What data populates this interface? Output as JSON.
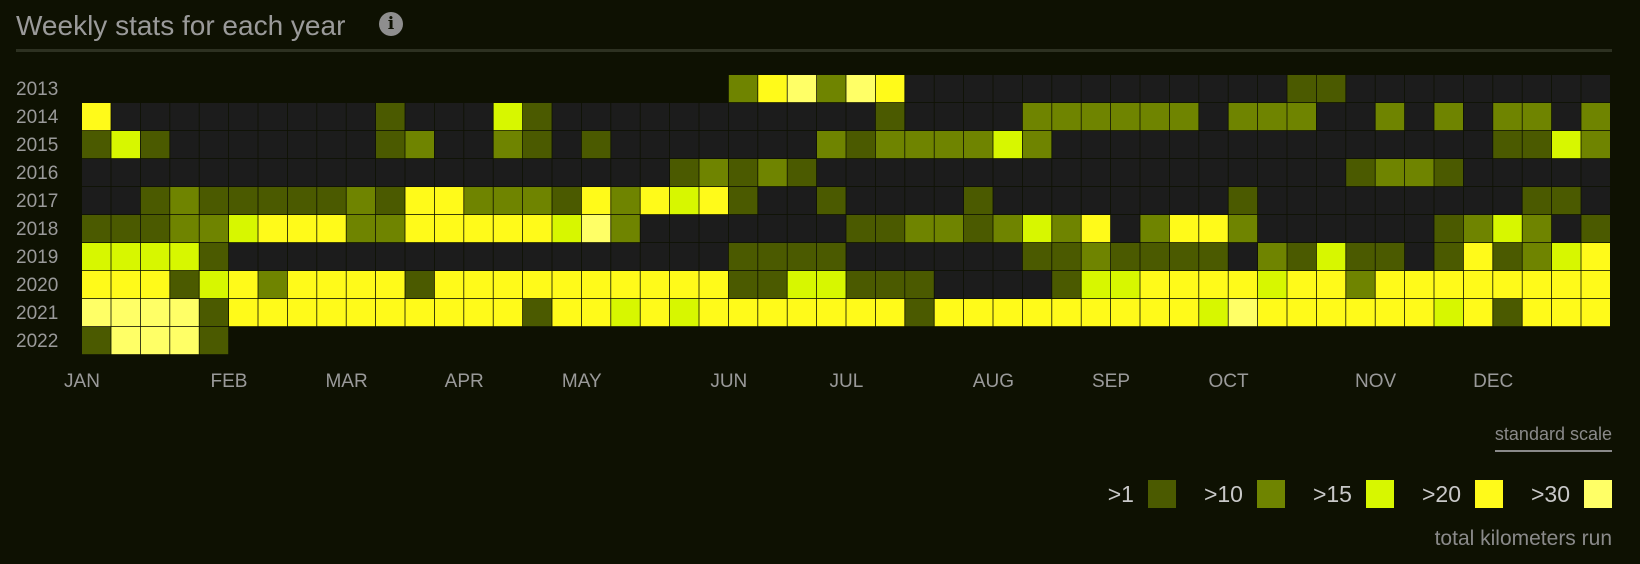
{
  "header": {
    "title": "Weekly stats for each year",
    "info_icon": "info-circle-icon"
  },
  "controls": {
    "scale_link": "standard scale"
  },
  "legend": {
    "caption": "total kilometers run",
    "items": [
      {
        "label": ">1",
        "color": "#4b5a00"
      },
      {
        "label": ">10",
        "color": "#6f8400"
      },
      {
        "label": ">15",
        "color": "#d7f700"
      },
      {
        "label": ">20",
        "color": "#fffa1a"
      },
      {
        "label": ">30",
        "color": "#ffff66"
      }
    ]
  },
  "chart_data": {
    "type": "heatmap",
    "title": "Weekly stats for each year",
    "y_labels": [
      "2013",
      "2014",
      "2015",
      "2016",
      "2017",
      "2018",
      "2019",
      "2020",
      "2021",
      "2022"
    ],
    "x_labels": [
      "JAN",
      "FEB",
      "MAR",
      "APR",
      "MAY",
      "JUN",
      "JUL",
      "AUG",
      "SEP",
      "OCT",
      "NOV",
      "DEC"
    ],
    "x_label_weeks": [
      0,
      5,
      9,
      13,
      17,
      22,
      26,
      31,
      35,
      39,
      44,
      48
    ],
    "weeks": 52,
    "unit": "total kilometers run",
    "levels": [
      ">1",
      ">10",
      ">15",
      ">20",
      ">30"
    ],
    "level_colors": [
      "#1c1c1c",
      "#4b5a00",
      "#6f8400",
      "#d7f700",
      "#fffa1a",
      "#ffff66"
    ],
    "values": [
      [
        -1,
        -1,
        -1,
        -1,
        -1,
        -1,
        -1,
        -1,
        -1,
        -1,
        -1,
        -1,
        -1,
        -1,
        -1,
        -1,
        -1,
        -1,
        -1,
        -1,
        -1,
        -1,
        2,
        4,
        5,
        2,
        5,
        4,
        0,
        0,
        0,
        0,
        0,
        0,
        0,
        0,
        0,
        0,
        0,
        0,
        0,
        1,
        1,
        0,
        0,
        0,
        0,
        0,
        0,
        0,
        0,
        0
      ],
      [
        4,
        0,
        0,
        0,
        0,
        0,
        0,
        0,
        0,
        0,
        1,
        0,
        0,
        0,
        3,
        1,
        0,
        0,
        0,
        0,
        0,
        0,
        0,
        0,
        0,
        0,
        0,
        1,
        0,
        0,
        0,
        0,
        2,
        2,
        2,
        2,
        2,
        2,
        0,
        2,
        2,
        2,
        0,
        0,
        2,
        0,
        2,
        0,
        2,
        2,
        0,
        2
      ],
      [
        1,
        3,
        1,
        0,
        0,
        0,
        0,
        0,
        0,
        0,
        1,
        2,
        0,
        0,
        2,
        1,
        0,
        1,
        0,
        0,
        0,
        0,
        0,
        0,
        0,
        2,
        1,
        2,
        2,
        2,
        2,
        3,
        2,
        0,
        0,
        0,
        0,
        0,
        0,
        0,
        0,
        0,
        0,
        0,
        0,
        0,
        0,
        0,
        1,
        1,
        3,
        2
      ],
      [
        0,
        0,
        0,
        0,
        0,
        0,
        0,
        0,
        0,
        0,
        0,
        0,
        0,
        0,
        0,
        0,
        0,
        0,
        0,
        0,
        1,
        2,
        1,
        2,
        1,
        0,
        0,
        0,
        0,
        0,
        0,
        0,
        0,
        0,
        0,
        0,
        0,
        0,
        0,
        0,
        0,
        0,
        0,
        1,
        2,
        2,
        1,
        0,
        0,
        0,
        0,
        0
      ],
      [
        0,
        0,
        1,
        2,
        1,
        1,
        1,
        1,
        1,
        2,
        1,
        4,
        4,
        2,
        2,
        2,
        1,
        4,
        2,
        4,
        3,
        4,
        1,
        0,
        0,
        1,
        0,
        0,
        0,
        0,
        1,
        0,
        0,
        0,
        0,
        0,
        0,
        0,
        0,
        1,
        0,
        0,
        0,
        0,
        0,
        0,
        0,
        0,
        0,
        1,
        1,
        0
      ],
      [
        1,
        1,
        1,
        2,
        2,
        3,
        4,
        4,
        4,
        2,
        2,
        4,
        4,
        4,
        4,
        4,
        3,
        5,
        2,
        0,
        0,
        0,
        0,
        0,
        0,
        0,
        1,
        1,
        2,
        2,
        1,
        2,
        3,
        2,
        4,
        0,
        2,
        4,
        4,
        2,
        0,
        0,
        0,
        0,
        0,
        0,
        1,
        2,
        3,
        2,
        0,
        1
      ],
      [
        3,
        3,
        3,
        3,
        1,
        0,
        0,
        0,
        0,
        0,
        0,
        0,
        0,
        0,
        0,
        0,
        0,
        0,
        0,
        0,
        0,
        0,
        1,
        1,
        1,
        1,
        0,
        0,
        0,
        0,
        0,
        0,
        1,
        1,
        2,
        1,
        1,
        1,
        1,
        0,
        2,
        1,
        3,
        1,
        1,
        0,
        1,
        4,
        1,
        2,
        3,
        4
      ],
      [
        4,
        4,
        4,
        1,
        3,
        4,
        2,
        4,
        4,
        4,
        4,
        1,
        4,
        4,
        4,
        4,
        4,
        4,
        4,
        4,
        4,
        4,
        1,
        1,
        3,
        3,
        1,
        1,
        1,
        0,
        0,
        0,
        0,
        1,
        3,
        3,
        4,
        4,
        4,
        4,
        3,
        4,
        4,
        2,
        4,
        4,
        4,
        4,
        4,
        4,
        4,
        4
      ],
      [
        5,
        5,
        5,
        5,
        1,
        4,
        4,
        4,
        4,
        4,
        4,
        4,
        4,
        4,
        4,
        1,
        4,
        4,
        3,
        4,
        3,
        4,
        4,
        4,
        4,
        4,
        4,
        4,
        1,
        4,
        4,
        4,
        4,
        4,
        4,
        4,
        4,
        4,
        3,
        5,
        4,
        4,
        4,
        4,
        4,
        4,
        3,
        4,
        1,
        4,
        4,
        4
      ],
      [
        1,
        5,
        5,
        5,
        1,
        -1,
        -1,
        -1,
        -1,
        -1,
        -1,
        -1,
        -1,
        -1,
        -1,
        -1,
        -1,
        -1,
        -1,
        -1,
        -1,
        -1,
        -1,
        -1,
        -1,
        -1,
        -1,
        -1,
        -1,
        -1,
        -1,
        -1,
        -1,
        -1,
        -1,
        -1,
        -1,
        -1,
        -1,
        -1,
        -1,
        -1,
        -1,
        -1,
        -1,
        -1,
        -1,
        -1,
        -1,
        -1,
        -1,
        -1
      ]
    ]
  }
}
